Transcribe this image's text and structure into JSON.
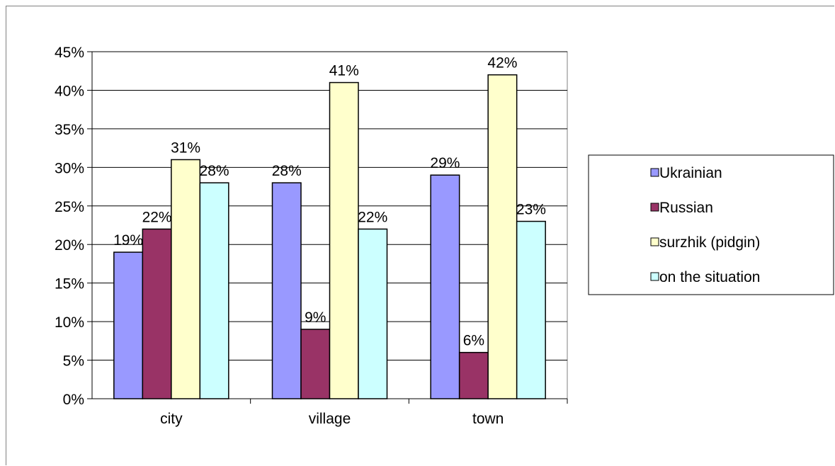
{
  "chart_data": {
    "type": "bar",
    "categories": [
      "city",
      "village",
      "town"
    ],
    "series": [
      {
        "name": "Ukrainian",
        "values": [
          19,
          28,
          29
        ],
        "color": "#9999ff"
      },
      {
        "name": "Russian",
        "values": [
          22,
          9,
          6
        ],
        "color": "#993366"
      },
      {
        "name": "surzhik (pidgin)",
        "values": [
          31,
          41,
          42
        ],
        "color": "#ffffcc"
      },
      {
        "name": "on the situation",
        "values": [
          28,
          22,
          23
        ],
        "color": "#ccffff"
      }
    ],
    "value_labels": [
      [
        "19%",
        "28%",
        "29%"
      ],
      [
        "22%",
        "9%",
        "6%"
      ],
      [
        "31%",
        "41%",
        "42%"
      ],
      [
        "28%",
        "22%",
        "23%"
      ]
    ],
    "y_ticks": [
      "0%",
      "5%",
      "10%",
      "15%",
      "20%",
      "25%",
      "30%",
      "35%",
      "40%",
      "45%"
    ],
    "ylim": [
      0,
      45
    ],
    "grid": true,
    "legend_position": "right",
    "title": "",
    "xlabel": "",
    "ylabel": ""
  }
}
